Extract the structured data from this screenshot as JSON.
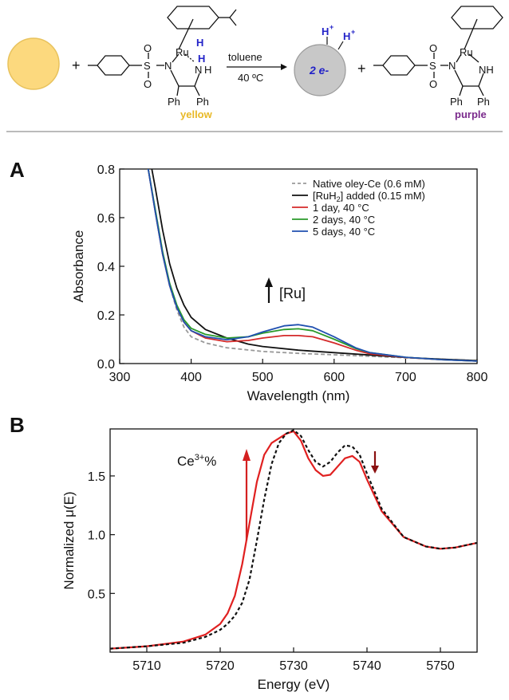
{
  "scheme": {
    "toluene": "toluene",
    "temp": "40 ºC",
    "plus": "+",
    "ru": "Ru",
    "h": "H",
    "s": "S",
    "n": "N",
    "nh": "NH",
    "o": "O",
    "ph": "Ph",
    "hplus": "H",
    "plus_sup": "+",
    "two_e": "2 e-",
    "yellow_label": "yellow",
    "purple_label": "purple",
    "colors": {
      "yellow": "#e8b927",
      "purple": "#7a2a8c",
      "blue": "#2323c8",
      "np_yellow": "#fcd97e",
      "np_grey": "#c8c8c8"
    }
  },
  "panels": {
    "a": "A",
    "b": "B"
  },
  "chart_data": [
    {
      "type": "line",
      "xlabel": "Wavelength (nm)",
      "ylabel": "Absorbance",
      "xlim": [
        300,
        800
      ],
      "ylim": [
        0,
        0.8
      ],
      "xticks": [
        300,
        400,
        500,
        600,
        700,
        800
      ],
      "yticks": [
        0.0,
        0.2,
        0.4,
        0.6,
        0.8
      ],
      "xtick_labels": [
        "300",
        "400",
        "500",
        "600",
        "700",
        "800"
      ],
      "ytick_labels": [
        "0.0",
        "0.2",
        "0.4",
        "0.6",
        "0.8"
      ],
      "legend_position": "top-right",
      "annotation": "[Ru]",
      "series": [
        {
          "name": "Native oley-Ce (0.6 mM)",
          "color": "#999999",
          "dashed": true,
          "x": [
            340,
            350,
            360,
            370,
            380,
            390,
            400,
            420,
            450,
            500,
            550,
            600,
            650,
            700,
            750,
            800
          ],
          "y": [
            0.8,
            0.63,
            0.46,
            0.32,
            0.22,
            0.15,
            0.11,
            0.085,
            0.065,
            0.05,
            0.042,
            0.036,
            0.03,
            0.024,
            0.018,
            0.012
          ]
        },
        {
          "name": "[RuH2] added (0.15 mM)",
          "color": "#111111",
          "dashed": false,
          "x": [
            345,
            350,
            360,
            370,
            380,
            390,
            400,
            420,
            450,
            480,
            500,
            550,
            600,
            650,
            700,
            750,
            800
          ],
          "y": [
            0.8,
            0.72,
            0.55,
            0.41,
            0.31,
            0.24,
            0.19,
            0.14,
            0.105,
            0.08,
            0.07,
            0.055,
            0.045,
            0.035,
            0.025,
            0.018,
            0.012
          ]
        },
        {
          "name": "1 day, 40 °C",
          "color": "#d42a2a",
          "dashed": false,
          "x": [
            340,
            350,
            360,
            370,
            380,
            390,
            400,
            420,
            450,
            480,
            500,
            530,
            550,
            570,
            600,
            630,
            650,
            700,
            750,
            800
          ],
          "y": [
            0.8,
            0.62,
            0.45,
            0.32,
            0.23,
            0.17,
            0.135,
            0.105,
            0.09,
            0.095,
            0.105,
            0.115,
            0.115,
            0.11,
            0.085,
            0.055,
            0.04,
            0.025,
            0.016,
            0.01
          ]
        },
        {
          "name": "2 days, 40 °C",
          "color": "#2a9a2a",
          "dashed": false,
          "x": [
            340,
            350,
            360,
            370,
            380,
            390,
            400,
            420,
            450,
            480,
            500,
            530,
            550,
            570,
            600,
            630,
            650,
            700,
            750,
            800
          ],
          "y": [
            0.8,
            0.63,
            0.46,
            0.33,
            0.24,
            0.18,
            0.145,
            0.12,
            0.105,
            0.11,
            0.125,
            0.14,
            0.143,
            0.135,
            0.1,
            0.062,
            0.045,
            0.026,
            0.016,
            0.01
          ]
        },
        {
          "name": "5 days, 40 °C",
          "color": "#2050b0",
          "dashed": false,
          "x": [
            340,
            350,
            360,
            370,
            380,
            390,
            400,
            420,
            450,
            480,
            500,
            530,
            550,
            570,
            600,
            630,
            650,
            700,
            750,
            800
          ],
          "y": [
            0.8,
            0.62,
            0.45,
            0.32,
            0.23,
            0.17,
            0.135,
            0.11,
            0.098,
            0.11,
            0.13,
            0.155,
            0.16,
            0.15,
            0.11,
            0.065,
            0.045,
            0.026,
            0.016,
            0.01
          ]
        }
      ]
    },
    {
      "type": "line",
      "xlabel": "Energy (eV)",
      "ylabel": "Normalized μ(E)",
      "xlim": [
        5705,
        5755
      ],
      "ylim": [
        0,
        1.9
      ],
      "xticks": [
        5710,
        5720,
        5730,
        5740,
        5750
      ],
      "yticks": [
        0.5,
        1.0,
        1.5
      ],
      "xtick_labels": [
        "5710",
        "5720",
        "5730",
        "5740",
        "5750"
      ],
      "ytick_labels": [
        "0.5",
        "1.0",
        "1.5"
      ],
      "annotation": "Ce3+%",
      "series": [
        {
          "name": "",
          "color": "#e02020",
          "dashed": false,
          "x": [
            5705,
            5710,
            5715,
            5718,
            5720,
            5721,
            5722,
            5723,
            5724,
            5725,
            5726,
            5727,
            5728,
            5729,
            5730,
            5731,
            5732,
            5733,
            5734,
            5735,
            5736,
            5737,
            5738,
            5739,
            5740,
            5742,
            5745,
            5748,
            5750,
            5752,
            5755
          ],
          "y": [
            0.03,
            0.05,
            0.09,
            0.15,
            0.24,
            0.33,
            0.48,
            0.75,
            1.1,
            1.45,
            1.68,
            1.78,
            1.82,
            1.86,
            1.88,
            1.8,
            1.65,
            1.55,
            1.5,
            1.51,
            1.58,
            1.65,
            1.67,
            1.62,
            1.47,
            1.2,
            0.98,
            0.9,
            0.88,
            0.89,
            0.93
          ]
        },
        {
          "name": "",
          "color": "#111111",
          "dashed": true,
          "x": [
            5705,
            5710,
            5715,
            5718,
            5720,
            5721,
            5722,
            5723,
            5724,
            5725,
            5726,
            5727,
            5728,
            5729,
            5730,
            5731,
            5732,
            5733,
            5734,
            5735,
            5736,
            5737,
            5738,
            5739,
            5740,
            5742,
            5745,
            5748,
            5750,
            5752,
            5755
          ],
          "y": [
            0.03,
            0.05,
            0.08,
            0.13,
            0.19,
            0.24,
            0.31,
            0.42,
            0.62,
            0.95,
            1.3,
            1.6,
            1.78,
            1.86,
            1.89,
            1.84,
            1.72,
            1.62,
            1.58,
            1.62,
            1.7,
            1.76,
            1.75,
            1.68,
            1.52,
            1.22,
            0.98,
            0.9,
            0.88,
            0.89,
            0.93
          ]
        }
      ]
    }
  ]
}
